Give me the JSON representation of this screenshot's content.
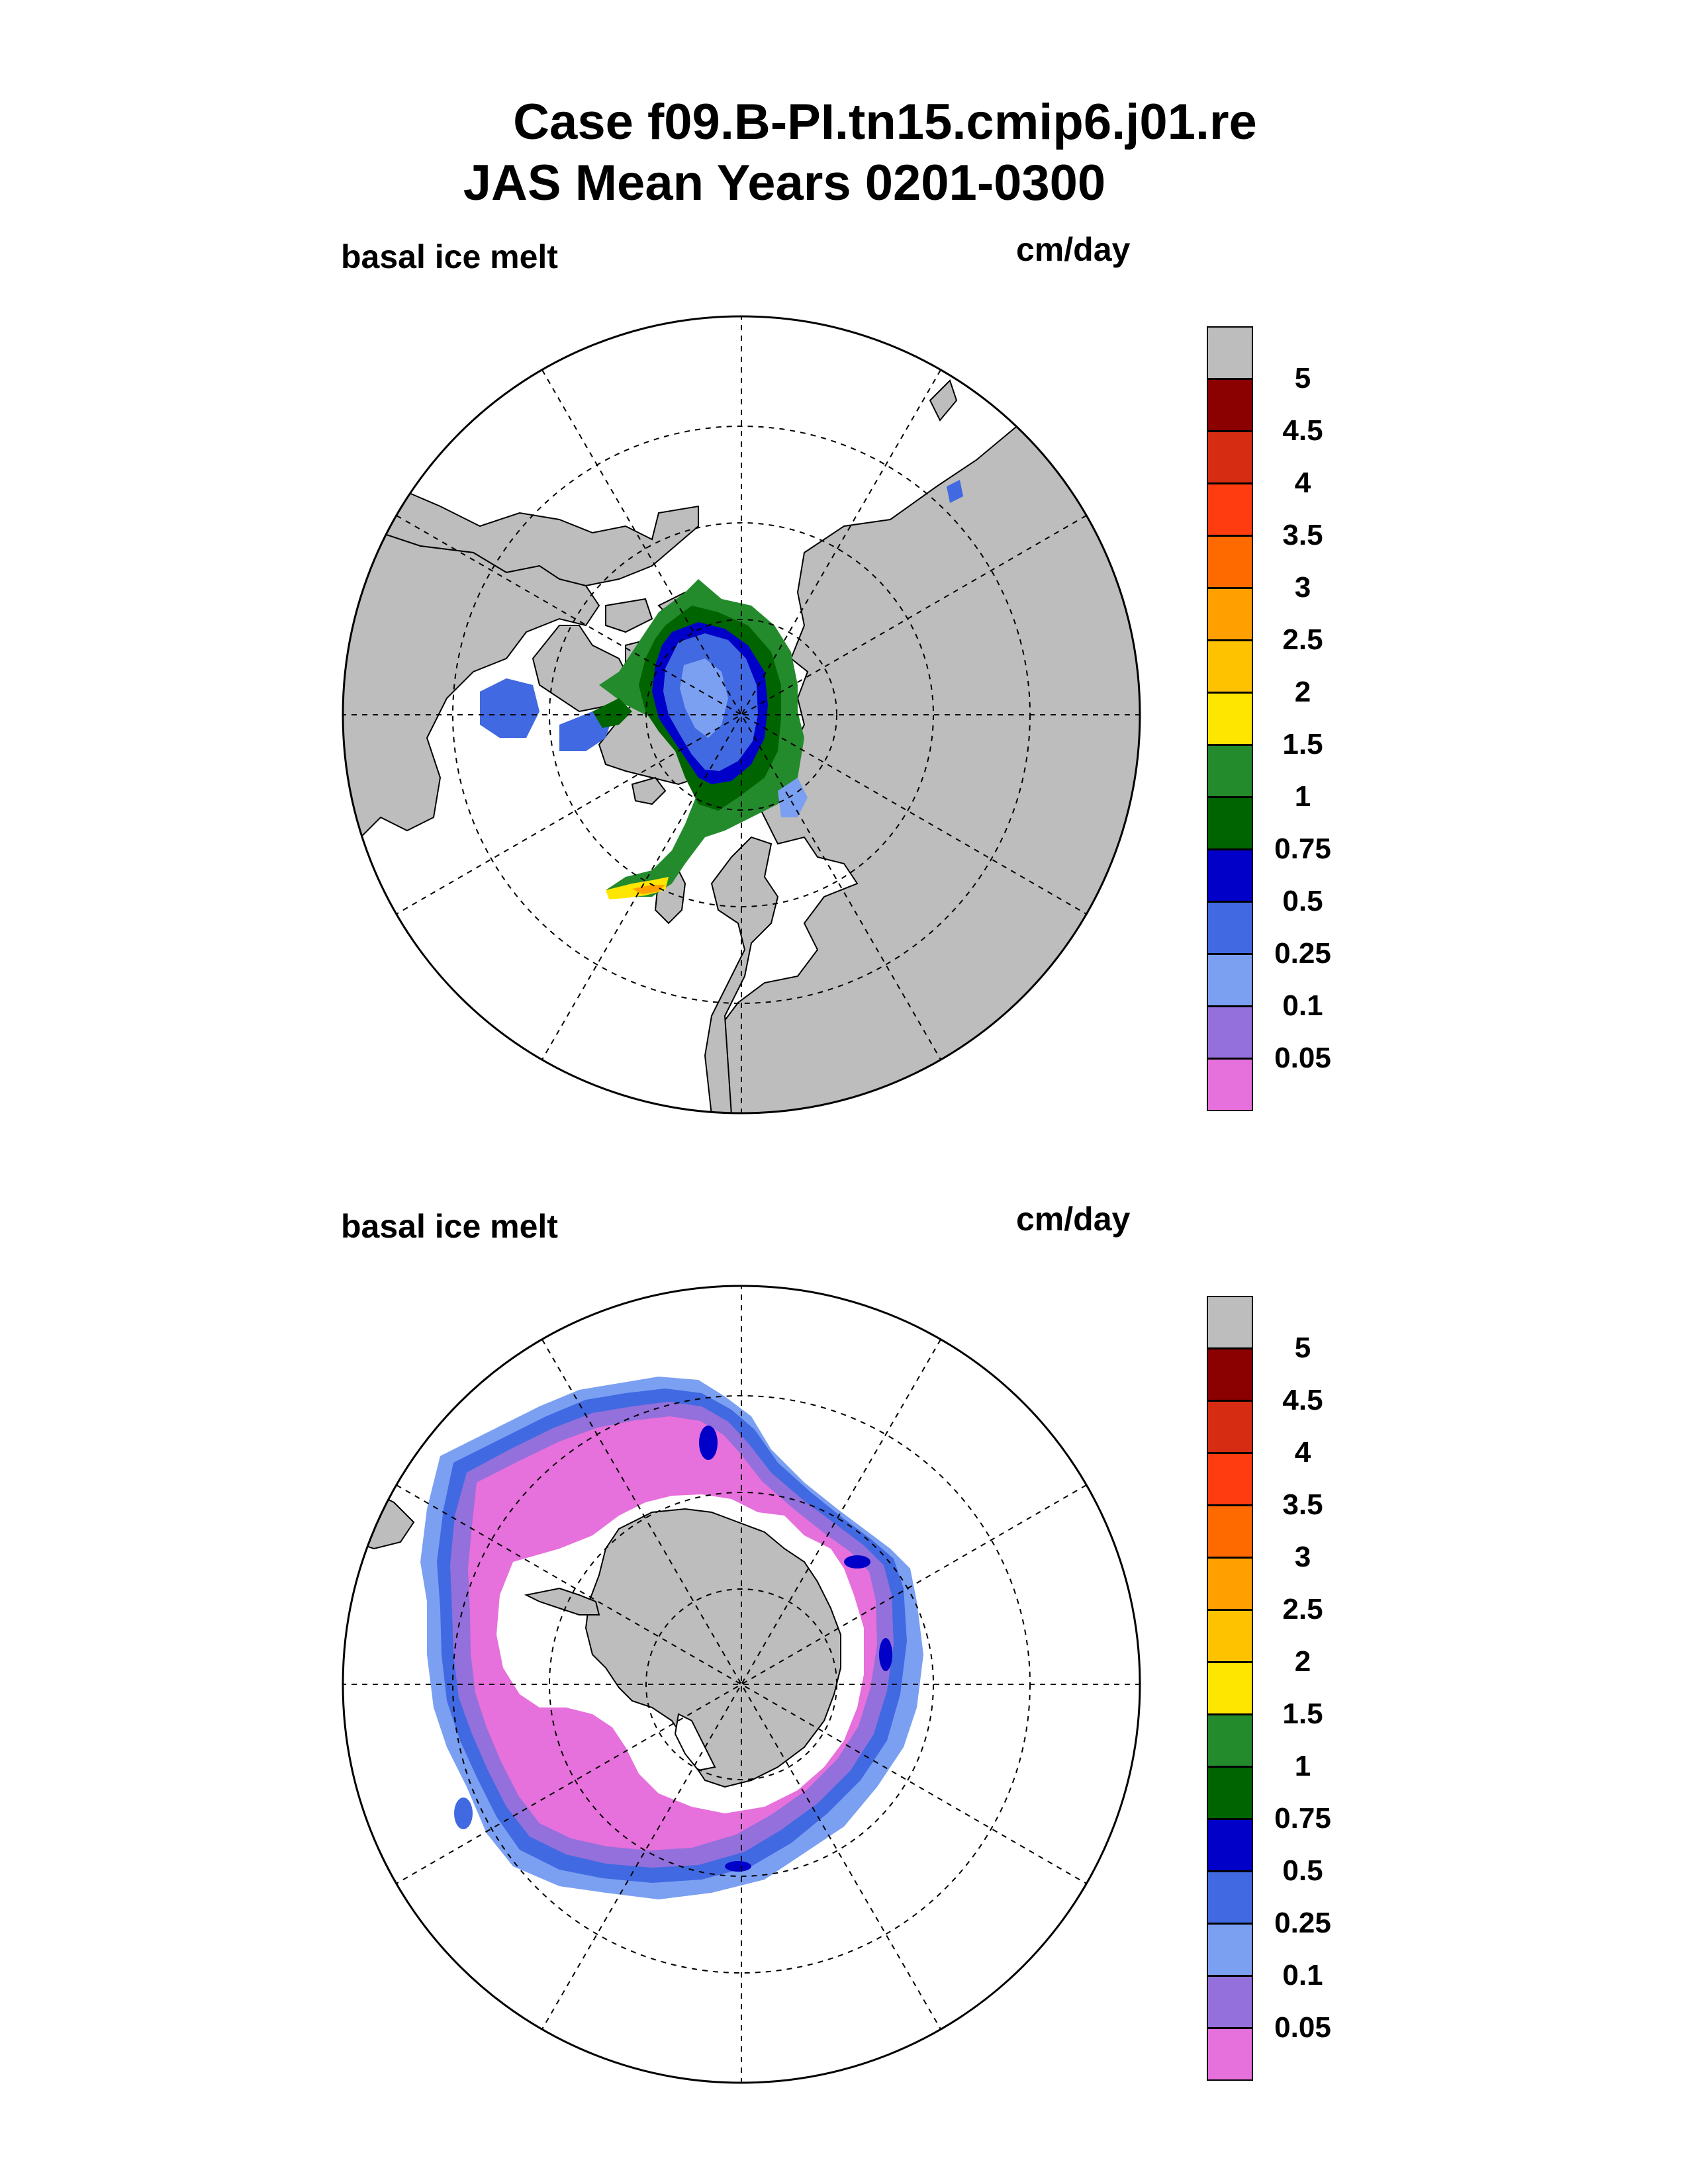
{
  "header": {
    "title_line1": "Case f09.B-PI.tn15.cmip6.j01.re",
    "title_line2": "JAS Mean   Years 0201-0300"
  },
  "panels": [
    {
      "hemisphere": "north",
      "variable_label": "basal ice melt",
      "units_label": "cm/day"
    },
    {
      "hemisphere": "south",
      "variable_label": "basal ice melt",
      "units_label": "cm/day"
    }
  ],
  "colorbar": {
    "labels": [
      "5",
      "4.5",
      "4",
      "3.5",
      "3",
      "2.5",
      "2",
      "1.5",
      "1",
      "0.75",
      "0.5",
      "0.25",
      "0.1",
      "0.05"
    ],
    "colors": [
      "#bdbdbd",
      "#8b0000",
      "#d62d12",
      "#ff3b10",
      "#ff6a00",
      "#ffa000",
      "#ffc200",
      "#ffe600",
      "#238b2c",
      "#006400",
      "#0000c8",
      "#4169e1",
      "#7ba0f2",
      "#9370db",
      "#e670dc"
    ]
  },
  "map_colors": {
    "land": "#bdbdbd",
    "ocean": "#ffffff"
  }
}
